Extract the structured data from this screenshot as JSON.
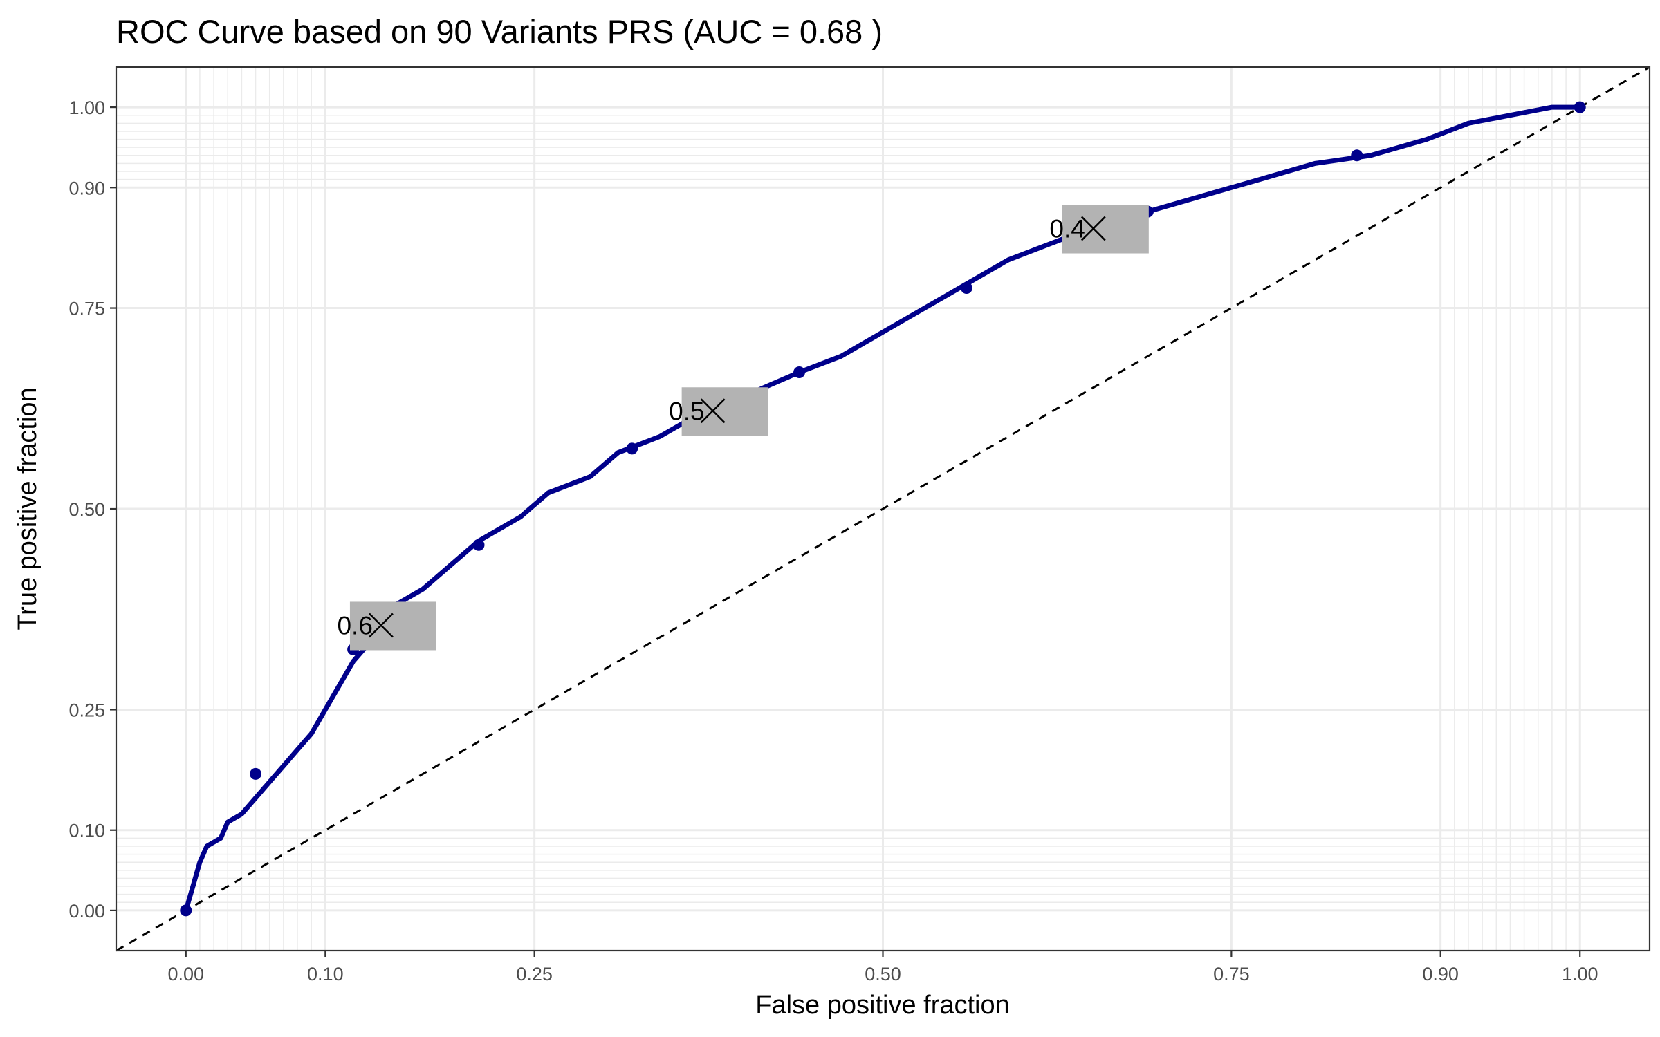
{
  "chart_data": {
    "type": "line",
    "title": "ROC Curve based on 90 Variants PRS (AUC = 0.68 )",
    "xlabel": "False positive fraction",
    "ylabel": "True positive fraction",
    "xlim": [
      -0.05,
      1.05
    ],
    "ylim": [
      -0.05,
      1.05
    ],
    "x_ticks": [
      0.0,
      0.1,
      0.25,
      0.5,
      0.75,
      0.9,
      1.0
    ],
    "x_tick_labels": [
      "0.00",
      "0.10",
      "0.25",
      "0.50",
      "0.75",
      "0.90",
      "1.00"
    ],
    "y_ticks": [
      0.0,
      0.1,
      0.25,
      0.5,
      0.75,
      0.9,
      1.0
    ],
    "y_tick_labels": [
      "0.00",
      "0.10",
      "0.25",
      "0.50",
      "0.75",
      "0.90",
      "1.00"
    ],
    "grid": true,
    "colors": {
      "curve": "#00008b",
      "diagonal": "#000000",
      "label_box": "#b3b3b3"
    },
    "series": [
      {
        "values": [
          [
            0.0,
            0.0
          ],
          [
            0.005,
            0.03
          ],
          [
            0.01,
            0.06
          ],
          [
            0.015,
            0.08
          ],
          [
            0.025,
            0.09
          ],
          [
            0.03,
            0.11
          ],
          [
            0.04,
            0.12
          ],
          [
            0.05,
            0.14
          ],
          [
            0.06,
            0.16
          ],
          [
            0.07,
            0.18
          ],
          [
            0.08,
            0.2
          ],
          [
            0.09,
            0.22
          ],
          [
            0.1,
            0.25
          ],
          [
            0.11,
            0.28
          ],
          [
            0.12,
            0.31
          ],
          [
            0.13,
            0.33
          ],
          [
            0.14,
            0.35
          ],
          [
            0.15,
            0.38
          ],
          [
            0.17,
            0.4
          ],
          [
            0.19,
            0.43
          ],
          [
            0.21,
            0.46
          ],
          [
            0.24,
            0.49
          ],
          [
            0.26,
            0.52
          ],
          [
            0.29,
            0.54
          ],
          [
            0.31,
            0.57
          ],
          [
            0.34,
            0.59
          ],
          [
            0.37,
            0.62
          ],
          [
            0.4,
            0.64
          ],
          [
            0.44,
            0.67
          ],
          [
            0.47,
            0.69
          ],
          [
            0.5,
            0.72
          ],
          [
            0.53,
            0.75
          ],
          [
            0.56,
            0.78
          ],
          [
            0.59,
            0.81
          ],
          [
            0.62,
            0.83
          ],
          [
            0.65,
            0.85
          ],
          [
            0.69,
            0.87
          ],
          [
            0.73,
            0.89
          ],
          [
            0.77,
            0.91
          ],
          [
            0.81,
            0.93
          ],
          [
            0.85,
            0.94
          ],
          [
            0.89,
            0.96
          ],
          [
            0.92,
            0.98
          ],
          [
            0.95,
            0.99
          ],
          [
            0.98,
            1.0
          ],
          [
            1.0,
            1.0
          ]
        ]
      }
    ],
    "points": [
      [
        0.0,
        0.0
      ],
      [
        0.05,
        0.17
      ],
      [
        0.12,
        0.325
      ],
      [
        0.21,
        0.455
      ],
      [
        0.32,
        0.575
      ],
      [
        0.44,
        0.67
      ],
      [
        0.56,
        0.775
      ],
      [
        0.69,
        0.87
      ],
      [
        0.84,
        0.94
      ],
      [
        1.0,
        1.0
      ]
    ],
    "cutoffs": [
      {
        "label": "0.6",
        "x": 0.14,
        "y": 0.355
      },
      {
        "label": "0.5",
        "x": 0.378,
        "y": 0.622
      },
      {
        "label": "0.4",
        "x": 0.651,
        "y": 0.849
      }
    ]
  }
}
